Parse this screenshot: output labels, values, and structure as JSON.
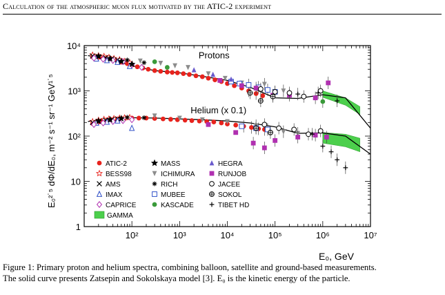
{
  "header": {
    "running_title": "Calculation of the atmospheric muon flux motivated by the ATIC-2 experiment"
  },
  "caption": {
    "line1": "Figure 1: Primary proton and helium spectra, combining balloon, satellite and ground-based measurements.",
    "line2": "The solid curve presents Zatsepin and Sokolskaya model [3]. E₀ is the kinetic energy of the particle."
  },
  "chart_data": {
    "type": "scatter",
    "xscale": "log",
    "yscale": "log",
    "xlim": [
      10,
      10000000
    ],
    "ylim": [
      1,
      10000
    ],
    "xlabel": "E₀, GeV",
    "ylabel": "E₀²˙⁵ dΦ/dE₀,  m⁻² s⁻¹ sr⁻¹ GeV¹˙⁵",
    "xticks": [
      {
        "v": 100,
        "label": "10²"
      },
      {
        "v": 1000,
        "label": "10³"
      },
      {
        "v": 10000,
        "label": "10⁴"
      },
      {
        "v": 100000,
        "label": "10⁵"
      },
      {
        "v": 1000000,
        "label": "10⁶"
      },
      {
        "v": 10000000,
        "label": "10⁷"
      }
    ],
    "yticks": [
      {
        "v": 1,
        "label": "1"
      },
      {
        "v": 10,
        "label": "10"
      },
      {
        "v": 100,
        "label": "10²"
      },
      {
        "v": 1000,
        "label": "10³"
      },
      {
        "v": 10000,
        "label": "10⁴"
      }
    ],
    "annotations": [
      {
        "text": "Protons",
        "x": 2500,
        "y": 5200
      },
      {
        "text": "Helium (x 0.1)",
        "x": 1700,
        "y": 320
      }
    ],
    "legend": {
      "placement": "bottom-left",
      "entries": [
        {
          "name": "ATIC-2",
          "marker": "circle-filled",
          "color": "#e8231d"
        },
        {
          "name": "MASS",
          "marker": "star-filled",
          "color": "#000000"
        },
        {
          "name": "HEGRA",
          "marker": "triangle-filled",
          "color": "#6a5acd"
        },
        {
          "name": "BESS98",
          "marker": "star-open",
          "color": "#e8231d"
        },
        {
          "name": "ICHIMURA",
          "marker": "triangle-down-filled",
          "color": "#8c8c8c"
        },
        {
          "name": "RUNJOB",
          "marker": "square-filled",
          "color": "#b030b0"
        },
        {
          "name": "AMS",
          "marker": "x",
          "color": "#000000"
        },
        {
          "name": "RICH",
          "marker": "asterisk",
          "color": "#000000"
        },
        {
          "name": "JACEE",
          "marker": "circle-open",
          "color": "#000000"
        },
        {
          "name": "IMAX",
          "marker": "triangle-open",
          "color": "#3050c8"
        },
        {
          "name": "MUBEE",
          "marker": "square-open",
          "color": "#3050c8"
        },
        {
          "name": "SOKOL",
          "marker": "cross-circle",
          "color": "#000000"
        },
        {
          "name": "CAPRICE",
          "marker": "diamond-open",
          "color": "#b030b0"
        },
        {
          "name": "KASCADE",
          "marker": "circle-filled",
          "color": "#3a9a3a"
        },
        {
          "name": "TIBET HD",
          "marker": "plus",
          "color": "#000000"
        },
        {
          "name": "GAMMA",
          "marker": "band",
          "color": "#4ccf4c"
        }
      ]
    },
    "model_curve": {
      "protons": [
        [
          12,
          6000
        ],
        [
          30,
          5200
        ],
        [
          100,
          3600
        ],
        [
          300,
          2800
        ],
        [
          1000,
          2500
        ],
        [
          3000,
          2100
        ],
        [
          10000,
          1700
        ],
        [
          30000,
          1200
        ],
        [
          100000,
          700
        ],
        [
          300000,
          680
        ],
        [
          1000000,
          820
        ],
        [
          3000000,
          700
        ],
        [
          10000000,
          150
        ]
      ],
      "helium": [
        [
          12,
          210
        ],
        [
          30,
          240
        ],
        [
          100,
          255
        ],
        [
          300,
          250
        ],
        [
          1000,
          240
        ],
        [
          3000,
          230
        ],
        [
          10000,
          215
        ],
        [
          30000,
          195
        ],
        [
          100000,
          160
        ],
        [
          300000,
          115
        ],
        [
          1000000,
          118
        ],
        [
          3000000,
          100
        ],
        [
          10000000,
          40
        ]
      ]
    },
    "gamma_band": {
      "protons_upper": [
        [
          1000000,
          1000
        ],
        [
          3000000,
          700
        ],
        [
          6000000,
          450
        ]
      ],
      "protons_lower": [
        [
          1000000,
          720
        ],
        [
          3000000,
          480
        ],
        [
          6000000,
          300
        ]
      ],
      "helium_upper": [
        [
          1000000,
          120
        ],
        [
          3000000,
          110
        ],
        [
          6000000,
          90
        ]
      ],
      "helium_lower": [
        [
          1000000,
          70
        ],
        [
          3000000,
          58
        ],
        [
          6000000,
          45
        ]
      ]
    },
    "series": [
      {
        "name": "ATIC-2",
        "marker": "circle-filled",
        "color": "#e8231d",
        "points": [
          [
            15,
            5600
          ],
          [
            20,
            5500
          ],
          [
            25,
            5300
          ],
          [
            30,
            5100
          ],
          [
            40,
            4800
          ],
          [
            50,
            4600
          ],
          [
            60,
            4300
          ],
          [
            80,
            4000
          ],
          [
            100,
            3700
          ],
          [
            130,
            3400
          ],
          [
            170,
            3200
          ],
          [
            220,
            3000
          ],
          [
            300,
            2800
          ],
          [
            400,
            2700
          ],
          [
            550,
            2600
          ],
          [
            700,
            2550
          ],
          [
            900,
            2500
          ],
          [
            1200,
            2400
          ],
          [
            1600,
            2300
          ],
          [
            2200,
            2150
          ],
          [
            3000,
            2050
          ],
          [
            4000,
            1900
          ],
          [
            5500,
            1750
          ],
          [
            7500,
            1600
          ],
          [
            10000,
            1450
          ],
          [
            14000,
            1300
          ],
          [
            20000,
            1150
          ],
          [
            28000,
            1000
          ],
          [
            40000,
            870
          ],
          [
            55000,
            780
          ],
          [
            15,
            190
          ],
          [
            20,
            205
          ],
          [
            25,
            215
          ],
          [
            30,
            220
          ],
          [
            40,
            230
          ],
          [
            50,
            240
          ],
          [
            70,
            245
          ],
          [
            100,
            250
          ],
          [
            140,
            250
          ],
          [
            200,
            250
          ],
          [
            300,
            245
          ],
          [
            450,
            240
          ],
          [
            650,
            235
          ],
          [
            900,
            230
          ],
          [
            1300,
            225
          ],
          [
            1800,
            220
          ],
          [
            2600,
            215
          ],
          [
            3700,
            210
          ],
          [
            5200,
            205
          ],
          [
            7500,
            195
          ],
          [
            10000,
            185
          ],
          [
            15000,
            175
          ],
          [
            22000,
            165
          ],
          [
            32000,
            155
          ],
          [
            45000,
            145
          ],
          [
            60000,
            140
          ]
        ]
      },
      {
        "name": "BESS98",
        "marker": "star-open",
        "color": "#e8231d",
        "points": [
          [
            15,
            6200
          ],
          [
            20,
            6000
          ],
          [
            26,
            5800
          ],
          [
            33,
            5500
          ],
          [
            42,
            5200
          ],
          [
            55,
            4900
          ],
          [
            70,
            4500
          ],
          [
            90,
            4200
          ],
          [
            15,
            210
          ],
          [
            20,
            225
          ],
          [
            26,
            235
          ],
          [
            33,
            240
          ],
          [
            42,
            245
          ],
          [
            55,
            250
          ],
          [
            70,
            255
          ],
          [
            90,
            258
          ]
        ]
      },
      {
        "name": "AMS",
        "marker": "x",
        "color": "#000000",
        "points": [
          [
            15,
            5900
          ],
          [
            20,
            5700
          ],
          [
            28,
            5400
          ],
          [
            38,
            5100
          ],
          [
            50,
            4800
          ],
          [
            15,
            200
          ],
          [
            20,
            212
          ],
          [
            28,
            225
          ],
          [
            38,
            232
          ],
          [
            50,
            240
          ]
        ]
      },
      {
        "name": "IMAX",
        "marker": "triangle-open",
        "color": "#3050c8",
        "points": [
          [
            18,
            5100
          ],
          [
            30,
            4700
          ],
          [
            50,
            4300
          ],
          [
            90,
            3500
          ],
          [
            18,
            195
          ],
          [
            30,
            205
          ],
          [
            50,
            218
          ],
          [
            100,
            150
          ]
        ]
      },
      {
        "name": "CAPRICE",
        "marker": "diamond-open",
        "color": "#b030b0",
        "points": [
          [
            16,
            5300
          ],
          [
            25,
            5000
          ],
          [
            40,
            4700
          ],
          [
            65,
            4400
          ],
          [
            100,
            3800
          ],
          [
            160,
            3300
          ],
          [
            16,
            180
          ],
          [
            25,
            195
          ],
          [
            40,
            210
          ],
          [
            65,
            220
          ],
          [
            100,
            230
          ]
        ]
      },
      {
        "name": "MASS",
        "marker": "star-filled",
        "color": "#000000",
        "points": [
          [
            20,
            5800
          ],
          [
            35,
            5200
          ],
          [
            60,
            4500
          ],
          [
            100,
            3900
          ],
          [
            20,
            215
          ],
          [
            35,
            232
          ],
          [
            60,
            245
          ]
        ]
      },
      {
        "name": "ICHIMURA",
        "marker": "triangle-down-filled",
        "color": "#8c8c8c",
        "points": [
          [
            150,
            4600
          ],
          [
            400,
            4100
          ],
          [
            800,
            3600
          ],
          [
            1500,
            3300
          ],
          [
            4000,
            2400
          ],
          [
            9000,
            1900
          ],
          [
            20000,
            1500
          ],
          [
            60000,
            1400
          ],
          [
            150000,
            1000
          ],
          [
            300,
            280
          ],
          [
            1000,
            250
          ],
          [
            3000,
            230
          ],
          [
            10000,
            210
          ],
          [
            40000,
            170
          ],
          [
            150000,
            125
          ],
          [
            300000,
            115
          ]
        ]
      },
      {
        "name": "RICH",
        "marker": "asterisk",
        "color": "#000000",
        "points": [
          [
            80,
            4800
          ],
          [
            180,
            4200
          ],
          [
            80,
            260
          ],
          [
            180,
            255
          ]
        ]
      },
      {
        "name": "MUBEE",
        "marker": "square-open",
        "color": "#3050c8",
        "points": [
          [
            12000,
            1600
          ],
          [
            18000,
            1450
          ],
          [
            28000,
            1350
          ],
          [
            45000,
            1200
          ],
          [
            70000,
            1050
          ],
          [
            100000,
            950
          ],
          [
            20000,
            165
          ],
          [
            40000,
            150
          ],
          [
            70000,
            140
          ]
        ]
      },
      {
        "name": "KASCADE",
        "marker": "circle-filled",
        "color": "#3a9a3a",
        "points": [
          [
            300,
            4400
          ],
          [
            550,
            3300
          ],
          [
            1000000,
            580
          ]
        ]
      },
      {
        "name": "HEGRA",
        "marker": "triangle-filled",
        "color": "#6a5acd",
        "points": [
          [
            2000,
            2900
          ],
          [
            5000,
            2300
          ],
          [
            12000,
            1800
          ]
        ]
      },
      {
        "name": "RUNJOB",
        "marker": "square-filled",
        "color": "#b030b0",
        "points": [
          [
            7000,
            1700
          ],
          [
            20000,
            1300
          ],
          [
            40000,
            1150
          ],
          [
            90000,
            800
          ],
          [
            200000,
            800
          ],
          [
            700000,
            700
          ],
          [
            1300000,
            1500
          ],
          [
            4000,
            180
          ],
          [
            15000,
            120
          ],
          [
            35000,
            70
          ],
          [
            60000,
            55
          ],
          [
            100000,
            80
          ],
          [
            300000,
            95
          ],
          [
            700000,
            105
          ],
          [
            1200000,
            95
          ]
        ]
      },
      {
        "name": "JACEE",
        "marker": "circle-open",
        "color": "#000000",
        "points": [
          [
            50000,
            1100
          ],
          [
            100000,
            950
          ],
          [
            200000,
            900
          ],
          [
            400000,
            750
          ],
          [
            900000,
            1000
          ],
          [
            60000,
            180
          ],
          [
            120000,
            150
          ],
          [
            250000,
            140
          ],
          [
            500000,
            110
          ],
          [
            900000,
            130
          ]
        ]
      },
      {
        "name": "SOKOL",
        "marker": "cross-circle",
        "color": "#000000",
        "points": [
          [
            30000,
            900
          ],
          [
            50000,
            600
          ],
          [
            90000,
            750
          ],
          [
            40000,
            150
          ],
          [
            80000,
            120
          ]
        ]
      },
      {
        "name": "TIBET HD",
        "marker": "plus",
        "color": "#000000",
        "points": [
          [
            300000,
            850
          ],
          [
            800000,
            900
          ],
          [
            2000000,
            600
          ],
          [
            600000,
            110
          ],
          [
            1000000,
            60
          ],
          [
            1500000,
            45
          ],
          [
            2000000,
            30
          ],
          [
            3000000,
            20
          ]
        ]
      }
    ]
  }
}
